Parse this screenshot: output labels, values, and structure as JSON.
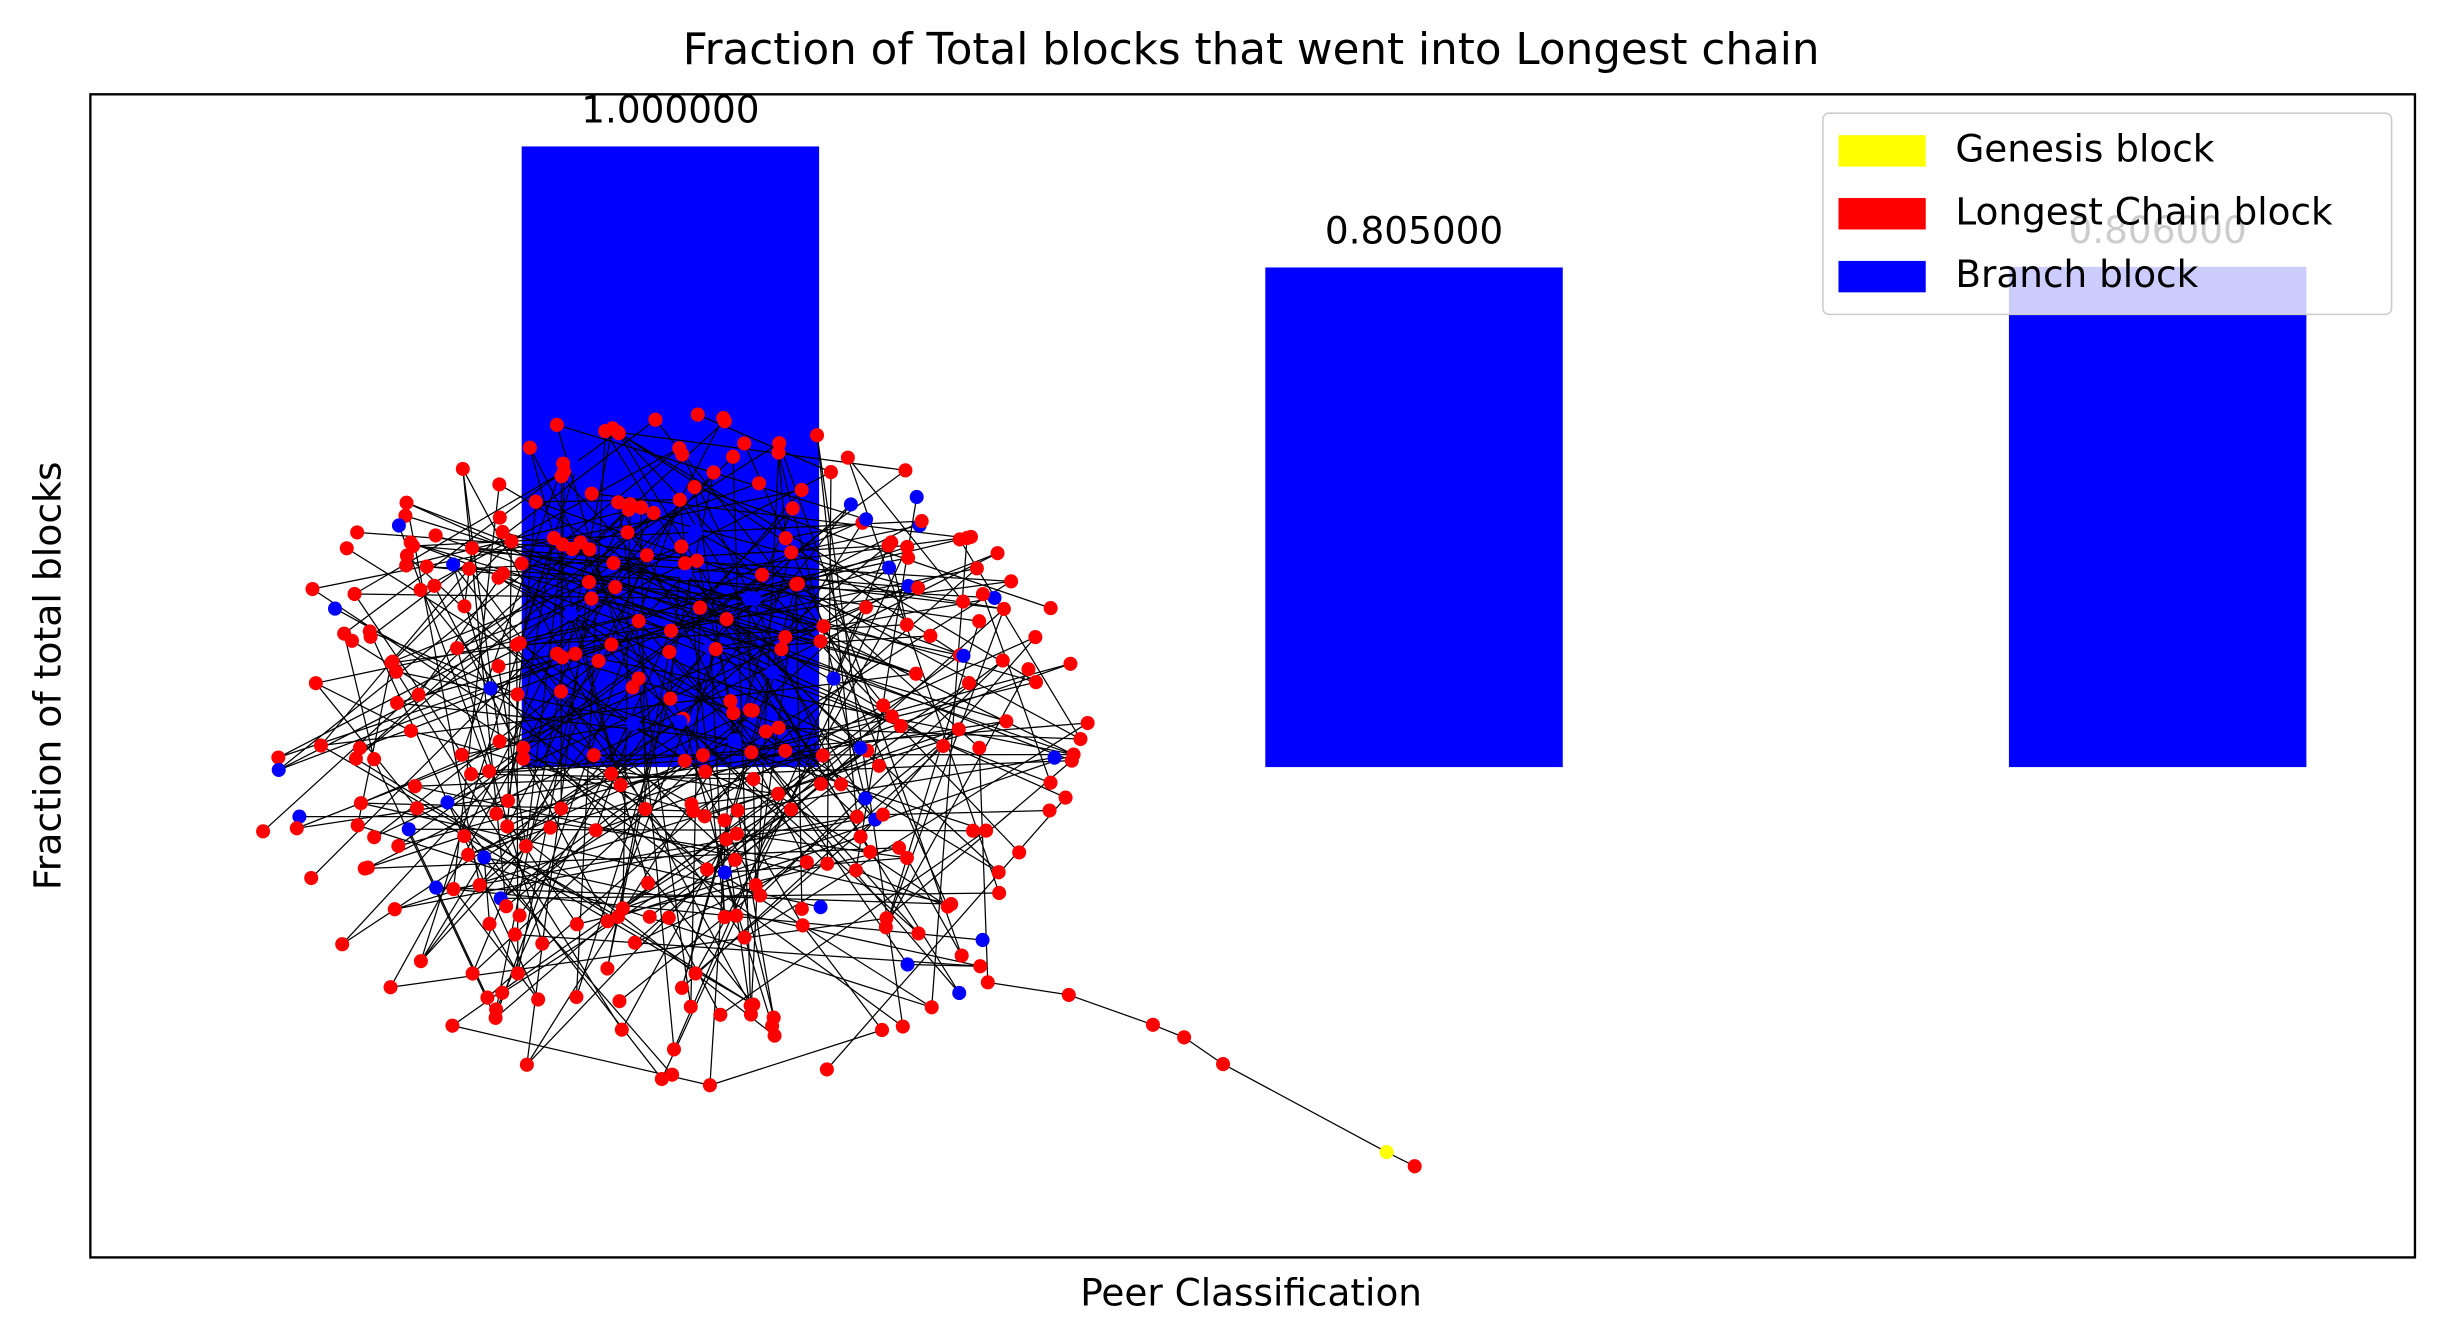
{
  "chart_data": {
    "type": "bar",
    "title": "Fraction of Total blocks that went into Longest chain",
    "xlabel": "Peer Classification",
    "ylabel": "Fraction of total blocks",
    "categories": [
      null,
      null,
      null
    ],
    "values": [
      1.0,
      0.805,
      0.806
    ],
    "value_labels": [
      "1.000000",
      "0.805000",
      "0.806000"
    ],
    "color": "#0000ff",
    "xlim": [
      -0.78,
      2.346
    ],
    "ylim": [
      -0.79,
      1.084
    ],
    "legend": [
      {
        "name": "Genesis block",
        "color": "#ffff00"
      },
      {
        "name": "Longest Chain block",
        "color": "#ff0000"
      },
      {
        "name": "Branch block",
        "color": "#0000ff"
      }
    ],
    "legend_position": "upper right"
  }
}
